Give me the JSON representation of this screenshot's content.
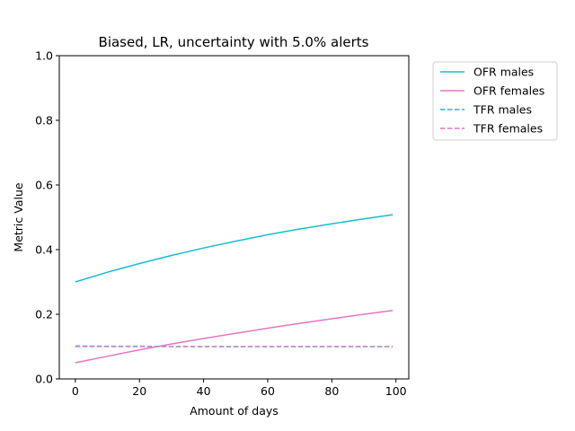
{
  "chart_data": {
    "type": "line",
    "title": "Biased, LR, uncertainty with 5.0% alerts",
    "xlabel": "Amount of days",
    "ylabel": "Metric Value",
    "xlim": [
      -5,
      104
    ],
    "ylim": [
      0.0,
      1.0
    ],
    "x_ticks": [
      0,
      20,
      40,
      60,
      80,
      100
    ],
    "y_ticks": [
      0.0,
      0.2,
      0.4,
      0.6,
      0.8,
      1.0
    ],
    "x_tick_labels": [
      "0",
      "20",
      "40",
      "60",
      "80",
      "100"
    ],
    "y_tick_labels": [
      "0.0",
      "0.2",
      "0.4",
      "0.6",
      "0.8",
      "1.0"
    ],
    "grid": false,
    "legend_position": "outside-top-right",
    "x": [
      0,
      10,
      20,
      30,
      40,
      50,
      60,
      70,
      80,
      90,
      99
    ],
    "series": [
      {
        "name": "OFR males",
        "color": "#17becf",
        "style": "solid",
        "values": [
          0.3,
          0.33,
          0.357,
          0.382,
          0.405,
          0.426,
          0.446,
          0.464,
          0.48,
          0.495,
          0.508
        ]
      },
      {
        "name": "OFR females",
        "color": "#e377c2",
        "style": "solid",
        "values": [
          0.05,
          0.07,
          0.09,
          0.108,
          0.125,
          0.141,
          0.157,
          0.172,
          0.186,
          0.2,
          0.212
        ]
      },
      {
        "name": "TFR males",
        "color": "#17becf",
        "style": "dashed",
        "values": [
          0.102,
          0.101,
          0.101,
          0.1,
          0.1,
          0.1,
          0.1,
          0.1,
          0.1,
          0.1,
          0.1
        ]
      },
      {
        "name": "TFR females",
        "color": "#e377c2",
        "style": "dashed",
        "values": [
          0.1,
          0.1,
          0.1,
          0.1,
          0.1,
          0.1,
          0.1,
          0.1,
          0.1,
          0.1,
          0.1
        ]
      }
    ]
  }
}
